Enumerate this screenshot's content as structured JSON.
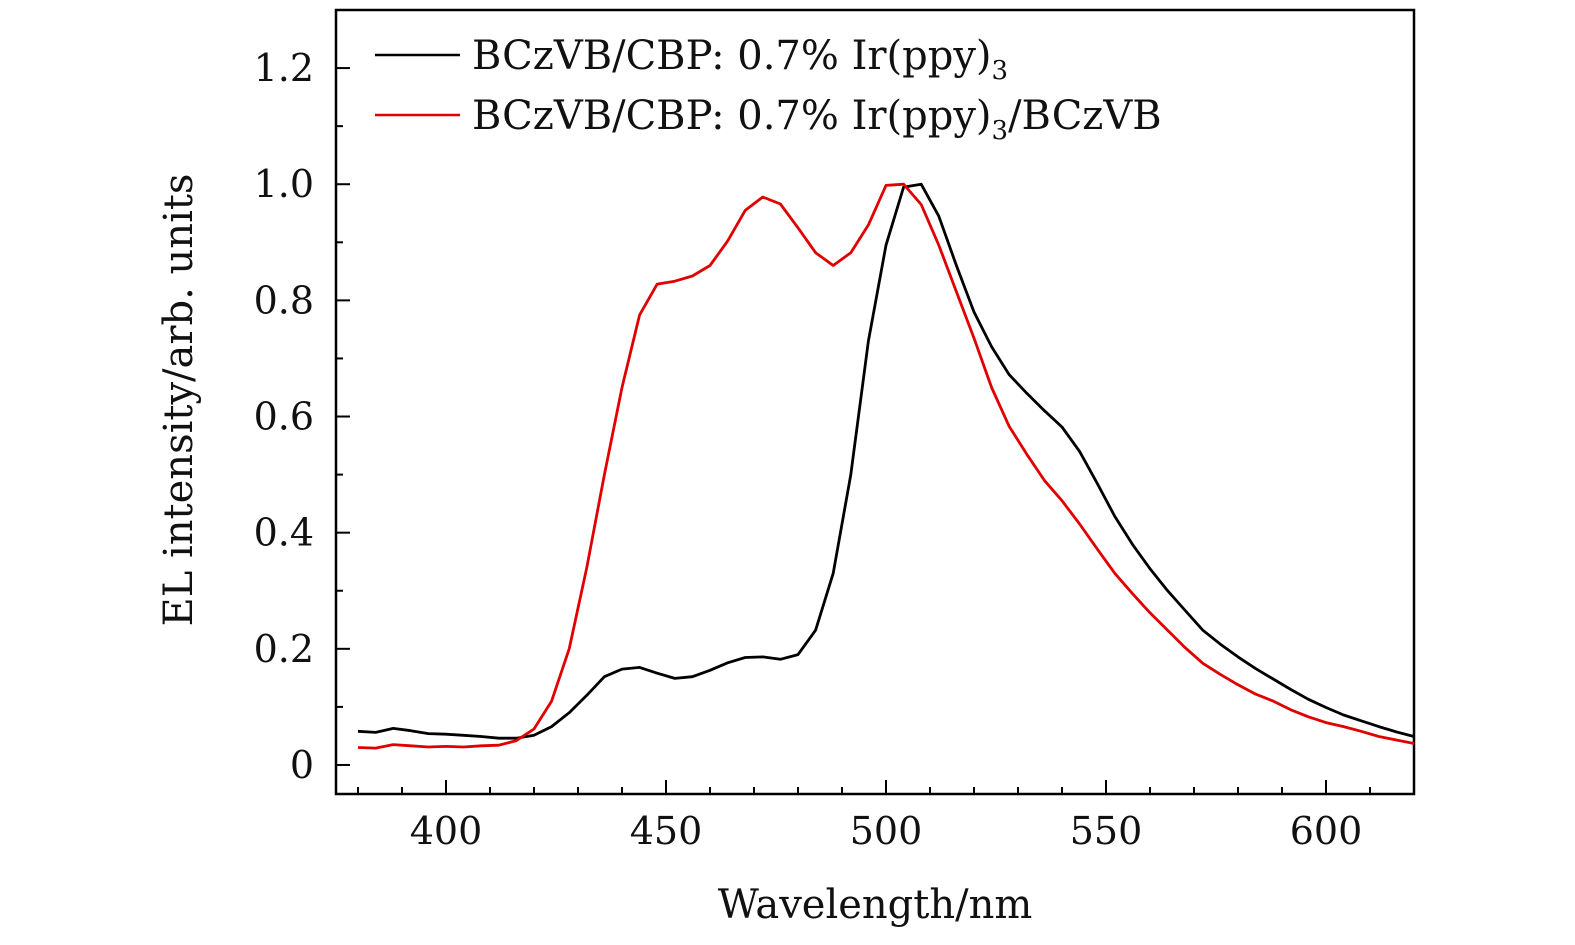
{
  "chart_data": {
    "type": "line",
    "title": "",
    "xlabel": "Wavelength/nm",
    "ylabel": "EL intensity/arb. units",
    "xlim": [
      375,
      620
    ],
    "ylim": [
      -0.05,
      1.3
    ],
    "xticks": [
      {
        "value": 400,
        "label": "400"
      },
      {
        "value": 450,
        "label": "450"
      },
      {
        "value": 500,
        "label": "500"
      },
      {
        "value": 550,
        "label": "550"
      },
      {
        "value": 600,
        "label": "600"
      }
    ],
    "yticks": [
      {
        "value": 0,
        "label": "0"
      },
      {
        "value": 0.2,
        "label": "0.2"
      },
      {
        "value": 0.4,
        "label": "0.4"
      },
      {
        "value": 0.6,
        "label": "0.6"
      },
      {
        "value": 0.8,
        "label": "0.8"
      },
      {
        "value": 1.0,
        "label": "1.0"
      },
      {
        "value": 1.2,
        "label": "1.2"
      }
    ],
    "legend_position": "top-left",
    "series": [
      {
        "name": "BCzVB/CBP: 0.7% Ir(ppy)",
        "name_suffix": "3",
        "color": "#000000",
        "x": [
          380,
          384,
          388,
          392,
          396,
          400,
          404,
          408,
          412,
          416,
          420,
          424,
          428,
          432,
          436,
          440,
          444,
          448,
          452,
          456,
          460,
          464,
          468,
          472,
          476,
          480,
          484,
          488,
          492,
          496,
          500,
          504,
          508,
          512,
          516,
          520,
          524,
          528,
          532,
          536,
          540,
          544,
          548,
          552,
          556,
          560,
          564,
          568,
          572,
          576,
          580,
          584,
          588,
          592,
          596,
          600,
          604,
          608,
          612,
          616,
          620
        ],
        "y": [
          0.058,
          0.056,
          0.063,
          0.059,
          0.054,
          0.053,
          0.051,
          0.049,
          0.046,
          0.046,
          0.051,
          0.066,
          0.09,
          0.12,
          0.152,
          0.165,
          0.168,
          0.158,
          0.149,
          0.152,
          0.163,
          0.176,
          0.185,
          0.186,
          0.182,
          0.19,
          0.232,
          0.33,
          0.5,
          0.73,
          0.895,
          0.995,
          1.0,
          0.945,
          0.86,
          0.78,
          0.72,
          0.672,
          0.64,
          0.61,
          0.582,
          0.54,
          0.485,
          0.428,
          0.38,
          0.338,
          0.3,
          0.266,
          0.232,
          0.208,
          0.186,
          0.166,
          0.148,
          0.13,
          0.113,
          0.099,
          0.086,
          0.076,
          0.066,
          0.057,
          0.049
        ]
      },
      {
        "name": "BCzVB/CBP: 0.7% Ir(ppy)",
        "name_suffix": "3",
        "name_tail": "/BCzVB",
        "color": "#e00000",
        "x": [
          380,
          384,
          388,
          392,
          396,
          400,
          404,
          408,
          412,
          416,
          420,
          424,
          428,
          432,
          436,
          440,
          444,
          448,
          452,
          456,
          460,
          464,
          468,
          472,
          476,
          480,
          484,
          488,
          492,
          496,
          500,
          504,
          508,
          512,
          516,
          520,
          524,
          528,
          532,
          536,
          540,
          544,
          548,
          552,
          556,
          560,
          564,
          568,
          572,
          576,
          580,
          584,
          588,
          592,
          596,
          600,
          604,
          608,
          612,
          616,
          620
        ],
        "y": [
          0.03,
          0.029,
          0.035,
          0.033,
          0.031,
          0.032,
          0.031,
          0.033,
          0.034,
          0.042,
          0.062,
          0.11,
          0.2,
          0.34,
          0.5,
          0.65,
          0.775,
          0.828,
          0.833,
          0.842,
          0.86,
          0.902,
          0.955,
          0.978,
          0.966,
          0.925,
          0.882,
          0.86,
          0.882,
          0.93,
          0.998,
          1.0,
          0.965,
          0.895,
          0.815,
          0.735,
          0.65,
          0.583,
          0.535,
          0.49,
          0.455,
          0.415,
          0.372,
          0.33,
          0.295,
          0.262,
          0.232,
          0.202,
          0.175,
          0.156,
          0.138,
          0.122,
          0.11,
          0.095,
          0.083,
          0.073,
          0.066,
          0.058,
          0.049,
          0.043,
          0.037
        ]
      }
    ]
  }
}
